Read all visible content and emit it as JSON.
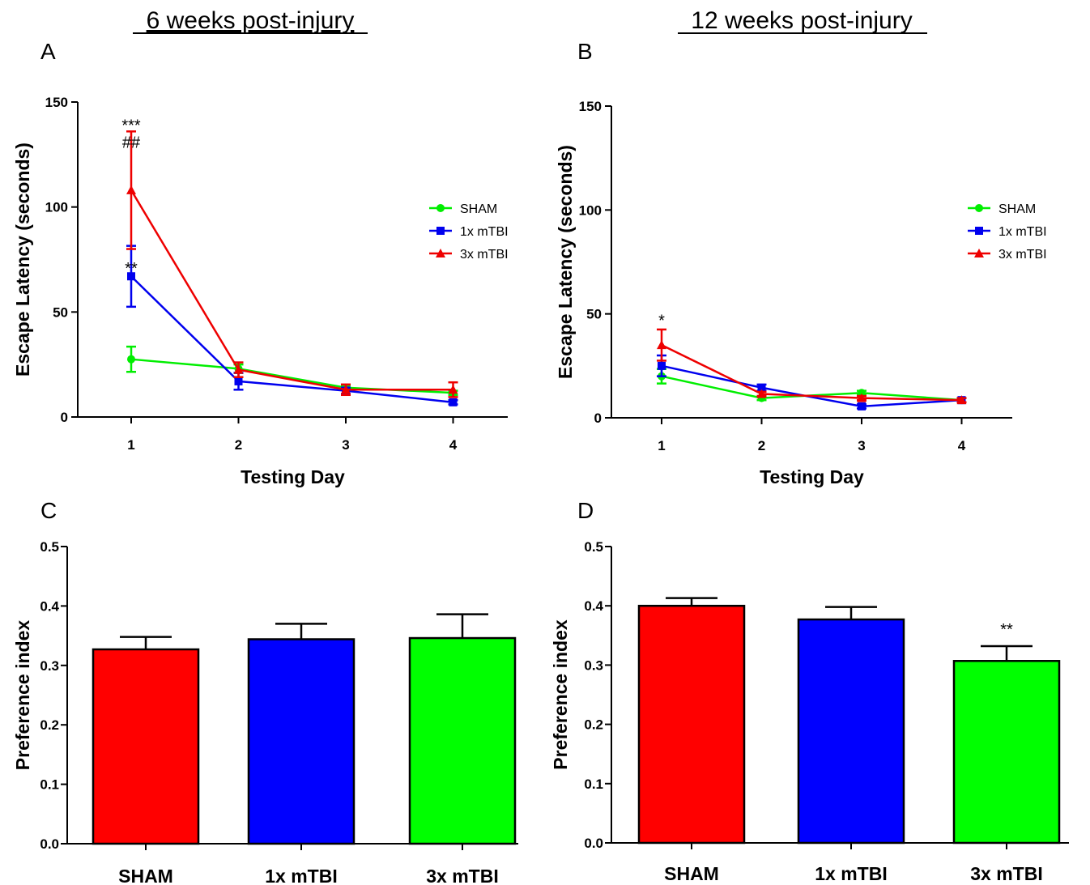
{
  "headings": {
    "left": "6 weeks post-injury",
    "right": "12 weeks post-injury"
  },
  "chart_data": [
    {
      "panel": "A",
      "type": "line",
      "xlabel": "Testing Day",
      "ylabel": "Escape Latency (seconds)",
      "x": [
        1,
        2,
        3,
        4
      ],
      "xlim": [
        0.5,
        4.5
      ],
      "ylim": [
        0,
        150
      ],
      "yticks": [
        0,
        50,
        100,
        150
      ],
      "legend": "right",
      "series": [
        {
          "name": "SHAM",
          "color": "#00ee00",
          "marker": "circle",
          "values": [
            27.5,
            23,
            14,
            11.5
          ],
          "errors": [
            6,
            2,
            1,
            1
          ]
        },
        {
          "name": "1x mTBI",
          "color": "#0000ee",
          "marker": "square",
          "values": [
            67,
            17,
            12.5,
            7
          ],
          "errors": [
            14.5,
            4,
            1.5,
            1
          ]
        },
        {
          "name": "3x mTBI",
          "color": "#ee0000",
          "marker": "triangle",
          "values": [
            108,
            22.5,
            13,
            13
          ],
          "errors": [
            28,
            3.5,
            2.5,
            3.5
          ]
        }
      ],
      "annotations": [
        {
          "x": 1,
          "y": 139,
          "text": "***"
        },
        {
          "x": 1,
          "y": 131,
          "text": "##"
        },
        {
          "x": 1,
          "y": 71,
          "text": "**"
        }
      ]
    },
    {
      "panel": "B",
      "type": "line",
      "xlabel": "Testing Day",
      "ylabel": "Escape Latency (seconds)",
      "x": [
        1,
        2,
        3,
        4
      ],
      "xlim": [
        0.5,
        4.5
      ],
      "ylim": [
        0,
        150
      ],
      "yticks": [
        0,
        50,
        100,
        150
      ],
      "legend": "right",
      "series": [
        {
          "name": "SHAM",
          "color": "#00ee00",
          "marker": "circle",
          "values": [
            20,
            9.5,
            12,
            8.5
          ],
          "errors": [
            3.5,
            1,
            1,
            1
          ]
        },
        {
          "name": "1x mTBI",
          "color": "#0000ee",
          "marker": "square",
          "values": [
            25,
            14.5,
            5.5,
            8.5
          ],
          "errors": [
            5,
            1.5,
            1,
            1
          ]
        },
        {
          "name": "3x mTBI",
          "color": "#ee0000",
          "marker": "triangle",
          "values": [
            35,
            11.5,
            9.5,
            8.5
          ],
          "errors": [
            7.5,
            1,
            1,
            1
          ]
        }
      ],
      "annotations": [
        {
          "x": 1,
          "y": 47,
          "text": "*"
        }
      ]
    },
    {
      "panel": "C",
      "type": "bar",
      "ylabel": "Preference index",
      "categories": [
        "SHAM",
        "1x mTBI",
        "3x mTBI"
      ],
      "colors": [
        "#ff0000",
        "#0000ff",
        "#00ff00"
      ],
      "values": [
        0.327,
        0.344,
        0.346
      ],
      "errors": [
        0.021,
        0.026,
        0.04
      ],
      "ylim": [
        0,
        0.5
      ],
      "yticks": [
        0.0,
        0.1,
        0.2,
        0.3,
        0.4,
        0.5
      ],
      "annotations": []
    },
    {
      "panel": "D",
      "type": "bar",
      "ylabel": "Preference index",
      "categories": [
        "SHAM",
        "1x mTBI",
        "3x mTBI"
      ],
      "colors": [
        "#ff0000",
        "#0000ff",
        "#00ff00"
      ],
      "values": [
        0.4,
        0.377,
        0.307
      ],
      "errors": [
        0.013,
        0.021,
        0.025
      ],
      "ylim": [
        0,
        0.5
      ],
      "yticks": [
        0.0,
        0.1,
        0.2,
        0.3,
        0.4,
        0.5
      ],
      "annotations": [
        {
          "category": 2,
          "y": 0.362,
          "text": "**"
        }
      ]
    }
  ]
}
